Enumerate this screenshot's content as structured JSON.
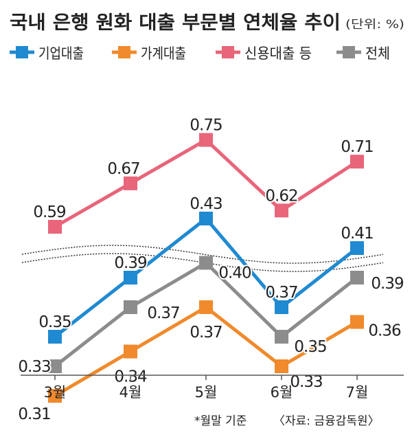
{
  "chart_data": {
    "type": "line",
    "title": "국내 은행 원화 대출 부문별 연체율 추이",
    "unit_note": "(단위: %)",
    "categories": [
      "3월",
      "4월",
      "5월",
      "6월",
      "7월"
    ],
    "series": [
      {
        "name": "기업대출",
        "color": "#1f8ad1",
        "values": [
          0.35,
          0.39,
          0.43,
          0.37,
          0.41
        ],
        "labels": [
          "0.35",
          "0.39",
          "0.43",
          "0.37",
          "0.41"
        ]
      },
      {
        "name": "가계대출",
        "color": "#f08a2c",
        "values": [
          0.31,
          0.34,
          0.37,
          0.33,
          0.36
        ],
        "labels": [
          "0.31",
          "0.34",
          "0.37",
          "0.33",
          "0.36"
        ]
      },
      {
        "name": "신용대출 등",
        "color": "#e8657a",
        "values": [
          0.59,
          0.67,
          0.75,
          0.62,
          0.71
        ],
        "labels": [
          "0.59",
          "0.67",
          "0.75",
          "0.62",
          "0.71"
        ]
      },
      {
        "name": "전체",
        "color": "#8c8c8c",
        "values": [
          0.33,
          0.37,
          0.4,
          0.35,
          0.39
        ],
        "labels": [
          "0.33",
          "0.37",
          "0.40",
          "0.35",
          "0.39"
        ]
      }
    ],
    "axis_break": true,
    "legend_position": "top",
    "grid": false
  },
  "footnote": "*월말 기준",
  "source": "〈자료: 금융감독원〉"
}
